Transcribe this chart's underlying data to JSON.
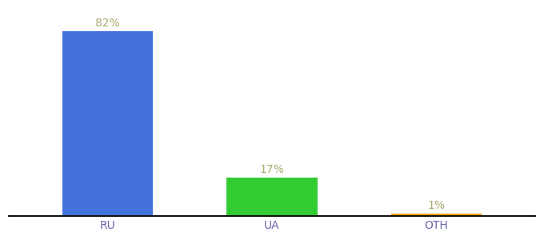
{
  "categories": [
    "RU",
    "UA",
    "OTH"
  ],
  "values": [
    82,
    17,
    1
  ],
  "bar_colors": [
    "#4472db",
    "#33cc33",
    "#ffa500"
  ],
  "background_color": "#ffffff",
  "ylim": [
    0,
    92
  ],
  "bar_width": 0.55,
  "label_fontsize": 10,
  "tick_fontsize": 10,
  "label_color": "#aaa870",
  "tick_color": "#6666aa",
  "spine_color": "#111111"
}
